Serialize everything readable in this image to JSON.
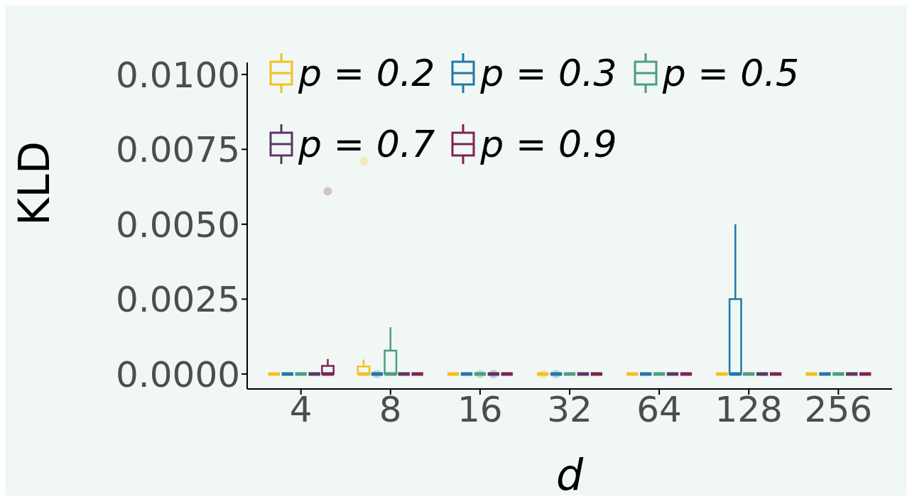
{
  "chart_data": {
    "type": "box",
    "xlabel": "d",
    "ylabel": "KLD",
    "categories": [
      "4",
      "8",
      "16",
      "32",
      "64",
      "128",
      "256"
    ],
    "ylim": [
      -0.0005,
      0.0104
    ],
    "yticks": [
      {
        "value": 0,
        "label": "0.0000"
      },
      {
        "value": 0.0025,
        "label": "0.0025"
      },
      {
        "value": 0.005,
        "label": "0.0050"
      },
      {
        "value": 0.0075,
        "label": "0.0075"
      },
      {
        "value": 0.01,
        "label": "0.0100"
      }
    ],
    "legend": "top",
    "grid": false,
    "series": [
      {
        "name": "p = 0.2",
        "color": "#f5bf1e",
        "boxes": [
          {
            "low": 0,
            "q1": 0,
            "median": 0,
            "q3": 0,
            "high": 0
          },
          {
            "low": 0,
            "q1": 0,
            "median": 0,
            "q3": 0.00025,
            "high": 0.00048,
            "outliers": [
              0.0071
            ]
          },
          {
            "low": 0,
            "q1": 0,
            "median": 0,
            "q3": 0,
            "high": 0
          },
          {
            "low": 0,
            "q1": 0,
            "median": 0,
            "q3": 0,
            "high": 0,
            "outliers": [
              0
            ]
          },
          {
            "low": 0,
            "q1": 0,
            "median": 0,
            "q3": 0,
            "high": 0
          },
          {
            "low": 0,
            "q1": 0,
            "median": 0,
            "q3": 0,
            "high": 0
          },
          {
            "low": 0,
            "q1": 0,
            "median": 0,
            "q3": 0,
            "high": 0
          }
        ]
      },
      {
        "name": "p = 0.3",
        "color": "#2277a6",
        "boxes": [
          {
            "low": 0,
            "q1": 0,
            "median": 0,
            "q3": 0,
            "high": 0
          },
          {
            "low": 0,
            "q1": 0,
            "median": 0,
            "q3": 0,
            "high": 0,
            "outliers": [
              0
            ]
          },
          {
            "low": 0,
            "q1": 0,
            "median": 0,
            "q3": 0,
            "high": 0
          },
          {
            "low": 0,
            "q1": 0,
            "median": 0,
            "q3": 0,
            "high": 0,
            "outliers": [
              0
            ]
          },
          {
            "low": 0,
            "q1": 0,
            "median": 0,
            "q3": 0,
            "high": 0
          },
          {
            "low": 0,
            "q1": 0,
            "median": 0,
            "q3": 0.0025,
            "high": 0.005
          },
          {
            "low": 0,
            "q1": 0,
            "median": 0,
            "q3": 0,
            "high": 0
          }
        ]
      },
      {
        "name": "p = 0.5",
        "color": "#4c9c83",
        "boxes": [
          {
            "low": 0,
            "q1": 0,
            "median": 0,
            "q3": 0,
            "high": 0
          },
          {
            "low": 0,
            "q1": 0,
            "median": 0,
            "q3": 0.00078,
            "high": 0.00156
          },
          {
            "low": 0,
            "q1": 0,
            "median": 0,
            "q3": 0,
            "high": 0,
            "outliers": [
              0
            ]
          },
          {
            "low": 0,
            "q1": 0,
            "median": 0,
            "q3": 0,
            "high": 0
          },
          {
            "low": 0,
            "q1": 0,
            "median": 0,
            "q3": 0,
            "high": 0
          },
          {
            "low": 0,
            "q1": 0,
            "median": 0,
            "q3": 0,
            "high": 0
          },
          {
            "low": 0,
            "q1": 0,
            "median": 0,
            "q3": 0,
            "high": 0
          }
        ]
      },
      {
        "name": "p = 0.7",
        "color": "#5b3566",
        "boxes": [
          {
            "low": 0,
            "q1": 0,
            "median": 0,
            "q3": 0,
            "high": 0
          },
          {
            "low": 0,
            "q1": 0,
            "median": 0,
            "q3": 0,
            "high": 0
          },
          {
            "low": 0,
            "q1": 0,
            "median": 0,
            "q3": 0,
            "high": 0,
            "outliers": [
              0
            ]
          },
          {
            "low": 0,
            "q1": 0,
            "median": 0,
            "q3": 0,
            "high": 0
          },
          {
            "low": 0,
            "q1": 0,
            "median": 0,
            "q3": 0,
            "high": 0
          },
          {
            "low": 0,
            "q1": 0,
            "median": 0,
            "q3": 0,
            "high": 0
          },
          {
            "low": 0,
            "q1": 0,
            "median": 0,
            "q3": 0,
            "high": 0
          }
        ]
      },
      {
        "name": "p = 0.9",
        "color": "#7e2351",
        "boxes": [
          {
            "low": 0,
            "q1": 0,
            "median": 0,
            "q3": 0.00027,
            "high": 0.0005,
            "outliers": [
              0.0061
            ]
          },
          {
            "low": 0,
            "q1": 0,
            "median": 0,
            "q3": 0,
            "high": 0
          },
          {
            "low": 0,
            "q1": 0,
            "median": 0,
            "q3": 0,
            "high": 0
          },
          {
            "low": 0,
            "q1": 0,
            "median": 0,
            "q3": 0,
            "high": 0
          },
          {
            "low": 0,
            "q1": 0,
            "median": 0,
            "q3": 0,
            "high": 0
          },
          {
            "low": 0,
            "q1": 0,
            "median": 0,
            "q3": 0,
            "high": 0
          },
          {
            "low": 0,
            "q1": 0,
            "median": 0,
            "q3": 0,
            "high": 0
          }
        ]
      }
    ]
  }
}
